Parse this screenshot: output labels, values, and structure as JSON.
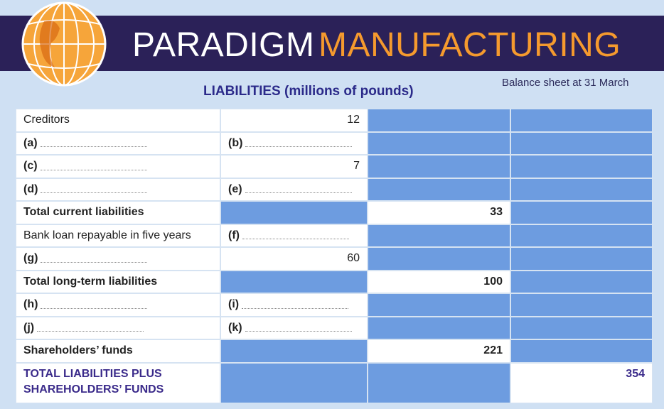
{
  "header": {
    "title_first": "PARADIGM",
    "title_second": "MANUFACTURING",
    "caption": "Balance sheet at 31 March"
  },
  "table": {
    "title": "LIABILITIES (millions of pounds)",
    "rows": [
      {
        "cells": [
          "Creditors",
          12,
          null,
          null
        ]
      },
      {
        "cells": [
          "(a)",
          "(b)",
          null,
          null
        ]
      },
      {
        "cells": [
          "(c)",
          7,
          null,
          null
        ]
      },
      {
        "cells": [
          "(d)",
          "(e)",
          null,
          null
        ]
      },
      {
        "cells": [
          "Total current liabilities",
          null,
          33,
          null
        ],
        "style": "bold"
      },
      {
        "cells": [
          "Bank loan repayable in five years",
          "(f)",
          null,
          null
        ]
      },
      {
        "cells": [
          "(g)",
          60,
          null,
          null
        ]
      },
      {
        "cells": [
          "Total long-term liabilities",
          null,
          100,
          null
        ],
        "style": "bold"
      },
      {
        "cells": [
          "(h)",
          "(i)",
          null,
          null
        ]
      },
      {
        "cells": [
          "(j)",
          "(k)",
          null,
          null
        ]
      },
      {
        "cells": [
          "Shareholders’ funds",
          null,
          221,
          null
        ],
        "style": "bold"
      },
      {
        "cells": [
          "TOTAL LIABILITIES PLUS SHAREHOLDERS’ FUNDS",
          null,
          null,
          354
        ],
        "style": "grand"
      }
    ]
  }
}
